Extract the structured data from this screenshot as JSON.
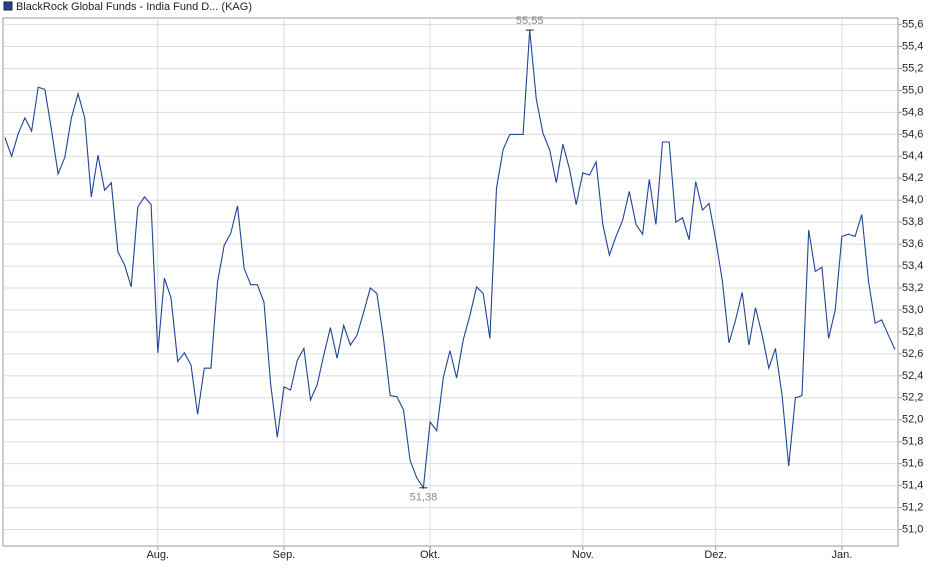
{
  "chart_data": {
    "type": "line",
    "categories": [
      null,
      null,
      null,
      null,
      null,
      null,
      null,
      null,
      null,
      null,
      null,
      null,
      null,
      null,
      null,
      null,
      null,
      null,
      null,
      null,
      null,
      null,
      null,
      "Aug.",
      null,
      null,
      null,
      null,
      null,
      null,
      null,
      null,
      null,
      null,
      null,
      null,
      null,
      null,
      null,
      null,
      null,
      null,
      "Sep.",
      null,
      null,
      null,
      null,
      null,
      null,
      null,
      null,
      null,
      null,
      null,
      null,
      null,
      null,
      null,
      null,
      null,
      null,
      null,
      null,
      null,
      "Okt.",
      null,
      null,
      null,
      null,
      null,
      null,
      null,
      null,
      null,
      null,
      null,
      null,
      null,
      null,
      null,
      null,
      null,
      null,
      null,
      null,
      null,
      null,
      "Nov.",
      null,
      null,
      null,
      null,
      null,
      null,
      null,
      null,
      null,
      null,
      null,
      null,
      null,
      null,
      null,
      null,
      null,
      null,
      null,
      "Dez.",
      null,
      null,
      null,
      null,
      null,
      null,
      null,
      null,
      null,
      null,
      null,
      null,
      null,
      null,
      null,
      null,
      null,
      null,
      "Jan.",
      null,
      null,
      null,
      null,
      null,
      null,
      null,
      null
    ],
    "series": [
      {
        "name": "BlackRock Global Funds - India Fund D... (KAG)",
        "color": "#1f4594",
        "values": [
          54.57,
          54.4,
          54.61,
          54.75,
          54.63,
          55.03,
          55.01,
          54.64,
          54.24,
          54.39,
          54.75,
          54.97,
          54.75,
          54.03,
          54.41,
          54.09,
          54.16,
          53.53,
          53.41,
          53.21,
          53.94,
          54.03,
          53.96,
          52.61,
          53.29,
          53.11,
          52.53,
          52.61,
          52.5,
          52.05,
          52.47,
          52.47,
          53.25,
          53.59,
          53.7,
          53.95,
          53.38,
          53.23,
          53.23,
          53.07,
          52.32,
          51.84,
          52.3,
          52.27,
          52.54,
          52.65,
          52.18,
          52.32,
          52.59,
          52.84,
          52.56,
          52.86,
          52.68,
          52.77,
          52.98,
          53.2,
          53.15,
          52.73,
          52.22,
          52.21,
          52.09,
          51.63,
          51.47,
          51.38,
          51.98,
          51.9,
          52.39,
          52.63,
          52.38,
          52.73,
          52.95,
          53.21,
          53.15,
          52.74,
          54.11,
          54.46,
          54.6,
          54.6,
          54.6,
          55.55,
          54.92,
          54.61,
          54.46,
          54.16,
          54.51,
          54.28,
          53.96,
          54.25,
          54.23,
          54.35,
          53.78,
          53.5,
          53.67,
          53.82,
          54.08,
          53.78,
          53.69,
          54.19,
          53.78,
          54.53,
          54.53,
          53.8,
          53.84,
          53.64,
          54.17,
          53.91,
          53.97,
          53.64,
          53.27,
          52.7,
          52.91,
          53.16,
          52.68,
          53.02,
          52.77,
          52.47,
          52.65,
          52.22,
          51.58,
          52.2,
          52.22,
          53.73,
          53.35,
          53.39,
          52.74,
          53.0,
          53.67,
          53.69,
          53.67,
          53.87,
          53.27,
          52.88,
          52.91,
          52.77,
          52.64
        ],
        "value_labels": [
          null,
          null,
          null,
          null,
          null,
          null,
          null,
          null,
          null,
          null,
          null,
          null,
          null,
          null,
          null,
          null,
          null,
          null,
          null,
          null,
          null,
          null,
          null,
          null,
          null,
          null,
          null,
          null,
          null,
          null,
          null,
          null,
          null,
          null,
          null,
          null,
          null,
          null,
          null,
          null,
          null,
          null,
          null,
          null,
          null,
          null,
          null,
          null,
          null,
          null,
          null,
          null,
          null,
          null,
          null,
          null,
          null,
          null,
          null,
          null,
          null,
          null,
          null,
          "51,38",
          null,
          null,
          null,
          null,
          null,
          null,
          null,
          null,
          null,
          null,
          null,
          null,
          null,
          null,
          null,
          "55,55",
          null,
          null,
          null,
          null,
          null,
          null,
          null,
          null,
          null,
          null,
          null,
          null,
          null,
          null,
          null,
          null,
          null,
          null,
          null,
          null,
          null,
          null,
          null,
          null,
          null,
          null,
          null,
          null,
          null,
          null,
          null,
          null,
          null,
          null,
          null,
          null,
          null,
          null,
          null,
          null,
          null,
          null,
          null,
          null,
          null,
          null,
          null,
          null,
          null,
          null,
          null,
          null,
          null,
          null,
          null
        ]
      }
    ],
    "ylim": [
      50.85,
      55.66
    ],
    "yticks": [
      {
        "value": 51.0,
        "label": "51,0"
      },
      {
        "value": 51.2,
        "label": "51,2"
      },
      {
        "value": 51.4,
        "label": "51,4"
      },
      {
        "value": 51.6,
        "label": "51,6"
      },
      {
        "value": 51.8,
        "label": "51,8"
      },
      {
        "value": 52.0,
        "label": "52,0"
      },
      {
        "value": 52.2,
        "label": "52,2"
      },
      {
        "value": 52.4,
        "label": "52,4"
      },
      {
        "value": 52.6,
        "label": "52,6"
      },
      {
        "value": 52.8,
        "label": "52,8"
      },
      {
        "value": 53.0,
        "label": "53,0"
      },
      {
        "value": 53.2,
        "label": "53,2"
      },
      {
        "value": 53.4,
        "label": "53,4"
      },
      {
        "value": 53.6,
        "label": "53,6"
      },
      {
        "value": 53.8,
        "label": "53,8"
      },
      {
        "value": 54.0,
        "label": "54,0"
      },
      {
        "value": 54.2,
        "label": "54,2"
      },
      {
        "value": 54.4,
        "label": "54,4"
      },
      {
        "value": 54.6,
        "label": "54,6"
      },
      {
        "value": 54.8,
        "label": "54,8"
      },
      {
        "value": 55.0,
        "label": "55,0"
      },
      {
        "value": 55.2,
        "label": "55,2"
      },
      {
        "value": 55.4,
        "label": "55,4"
      },
      {
        "value": 55.6,
        "label": "55,6"
      }
    ],
    "grid": true
  }
}
